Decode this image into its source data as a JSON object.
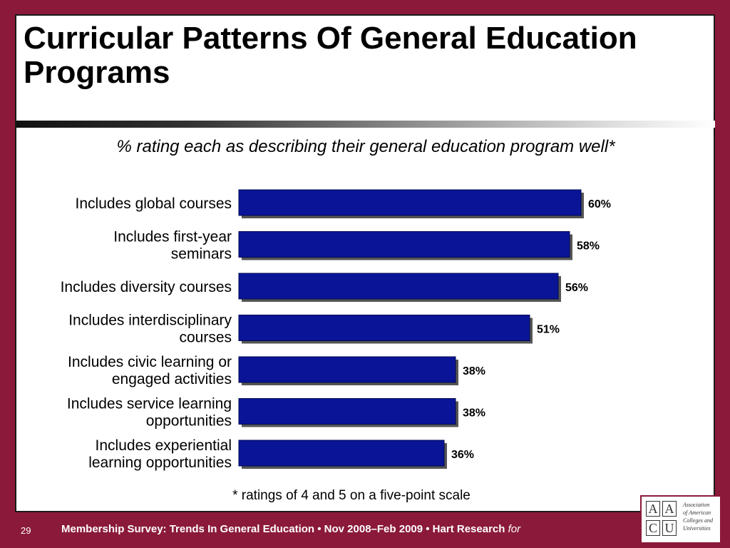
{
  "slide": {
    "title": "Curricular Patterns Of General Education Programs",
    "subtitle": "% rating each as describing their general education program well*",
    "footnote": "* ratings of 4 and 5 on a five-point scale"
  },
  "chart_data": {
    "type": "bar",
    "orientation": "horizontal",
    "categories": [
      "Includes global courses",
      "Includes first-year seminars",
      "Includes diversity courses",
      "Includes interdisciplinary courses",
      "Includes civic learning or engaged activities",
      "Includes service learning opportunities",
      "Includes experiential learning opportunities"
    ],
    "category_lines": [
      [
        "Includes global courses"
      ],
      [
        "Includes first-year",
        "seminars"
      ],
      [
        "Includes diversity courses"
      ],
      [
        "Includes interdisciplinary",
        "courses"
      ],
      [
        "Includes civic learning or",
        "engaged activities"
      ],
      [
        "Includes service learning",
        "opportunities"
      ],
      [
        "Includes experiential",
        "learning opportunities"
      ]
    ],
    "values": [
      60,
      58,
      56,
      51,
      38,
      38,
      36
    ],
    "value_labels": [
      "60%",
      "58%",
      "56%",
      "51%",
      "38%",
      "38%",
      "36%"
    ],
    "xlim": [
      0,
      100
    ],
    "bar_color": "#0a1496",
    "grid": false
  },
  "footer": {
    "page_number": "29",
    "text": "Membership Survey: Trends In General Education • Nov 2008–Feb 2009 • Hart Research",
    "text_for": "for",
    "background_color": "#8b1a3a"
  },
  "logo": {
    "letters": [
      "A",
      "A",
      "C",
      "U"
    ],
    "line1": "Association",
    "line2": "of American",
    "line3": "Colleges and",
    "line4": "Universities"
  }
}
